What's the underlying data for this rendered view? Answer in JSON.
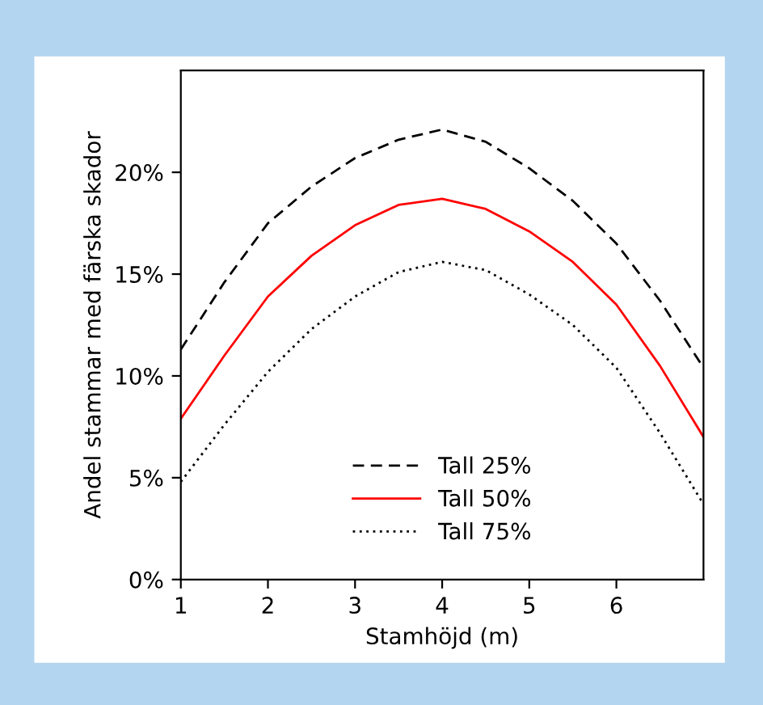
{
  "chart_data": {
    "type": "line",
    "xlabel": "Stamhöjd (m)",
    "ylabel": "Andel stammar med färska skador",
    "x": [
      1,
      1.5,
      2,
      2.5,
      3,
      3.5,
      4,
      4.5,
      5,
      5.5,
      6,
      6.5,
      7
    ],
    "series": [
      {
        "name": "Tall 25%",
        "color": "#000000",
        "line_style": "dashed",
        "values": [
          11.3,
          14.6,
          17.5,
          19.3,
          20.7,
          21.6,
          22.1,
          21.5,
          20.2,
          18.6,
          16.5,
          13.7,
          10.4
        ]
      },
      {
        "name": "Tall 50%",
        "color": "#ff0000",
        "line_style": "solid",
        "values": [
          7.9,
          11.0,
          13.9,
          15.9,
          17.4,
          18.4,
          18.7,
          18.2,
          17.1,
          15.6,
          13.5,
          10.5,
          7.0
        ]
      },
      {
        "name": "Tall 75%",
        "color": "#000000",
        "line_style": "dotted",
        "values": [
          4.8,
          7.6,
          10.2,
          12.3,
          13.9,
          15.1,
          15.6,
          15.2,
          14.0,
          12.5,
          10.4,
          7.2,
          3.7
        ]
      }
    ],
    "xlim": [
      1,
      7
    ],
    "xticks": [
      1,
      2,
      3,
      4,
      5,
      6
    ],
    "ylim": [
      0,
      25
    ],
    "yticks": [
      {
        "value": 0,
        "label": "0%"
      },
      {
        "value": 5,
        "label": "5%"
      },
      {
        "value": 10,
        "label": "10%"
      },
      {
        "value": 15,
        "label": "15%"
      },
      {
        "value": 20,
        "label": "20%"
      }
    ],
    "grid": false,
    "legend": "bottom",
    "marker": "none"
  }
}
